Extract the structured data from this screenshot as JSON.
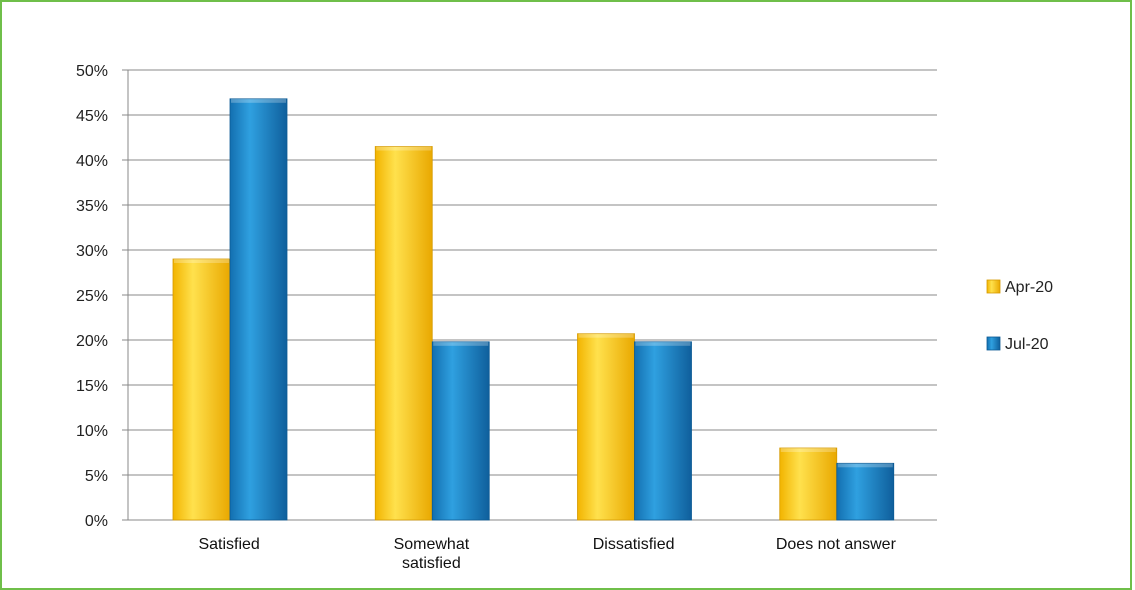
{
  "chart_data": {
    "type": "bar",
    "categories": [
      "Satisfied",
      "Somewhat satisfied",
      "Dissatisfied",
      "Does not answer"
    ],
    "category_lines": [
      [
        "Satisfied"
      ],
      [
        "Somewhat",
        "satisfied"
      ],
      [
        "Dissatisfied"
      ],
      [
        "Does not answer"
      ]
    ],
    "series": [
      {
        "name": "Apr-20",
        "values": [
          29,
          41.5,
          20.7,
          8
        ],
        "color": "#f7c600"
      },
      {
        "name": "Jul-20",
        "values": [
          46.8,
          19.8,
          19.8,
          6.3
        ],
        "color": "#1f86c6"
      }
    ],
    "ylim": [
      0,
      50
    ],
    "ytick_step": 5,
    "ytick_labels": [
      "0%",
      "5%",
      "10%",
      "15%",
      "20%",
      "25%",
      "30%",
      "35%",
      "40%",
      "45%",
      "50%"
    ],
    "xlabel": "",
    "ylabel": "",
    "title": "",
    "grid": true,
    "legend_position": "right"
  },
  "colors": {
    "frame": "#6fbf4a",
    "gridline": "#888888",
    "apr_fill": "#f7c600",
    "jul_fill": "#1f86c6"
  }
}
